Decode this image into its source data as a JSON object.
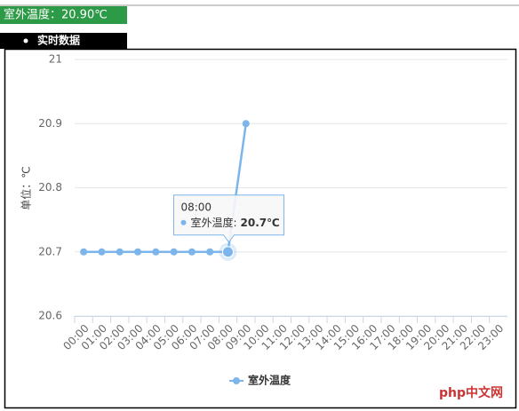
{
  "header_text": "室外温度：20.90℃",
  "tab_label": "实时数据",
  "watermark": "php中文网",
  "chart_data": {
    "type": "line",
    "y_axis_label": "单位：℃",
    "categories": [
      "00:00",
      "01:00",
      "02:00",
      "03:00",
      "04:00",
      "05:00",
      "06:00",
      "07:00",
      "08:00",
      "09:00",
      "10:00",
      "11:00",
      "12:00",
      "13:00",
      "14:00",
      "15:00",
      "16:00",
      "17:00",
      "18:00",
      "19:00",
      "20:00",
      "21:00",
      "22:00",
      "23:00"
    ],
    "series": [
      {
        "name": "室外温度",
        "color": "#7cb5ec",
        "values": [
          20.7,
          20.7,
          20.7,
          20.7,
          20.7,
          20.7,
          20.7,
          20.7,
          20.7,
          20.9,
          null,
          null,
          null,
          null,
          null,
          null,
          null,
          null,
          null,
          null,
          null,
          null,
          null,
          null
        ]
      }
    ],
    "ylim": [
      20.6,
      21
    ],
    "yticks": [
      20.6,
      20.7,
      20.8,
      20.9,
      21
    ],
    "grid": true,
    "legend": "bottom",
    "tooltip": {
      "header": "08:00",
      "label": "室外温度:",
      "value": "20.7℃",
      "index": 8
    }
  }
}
